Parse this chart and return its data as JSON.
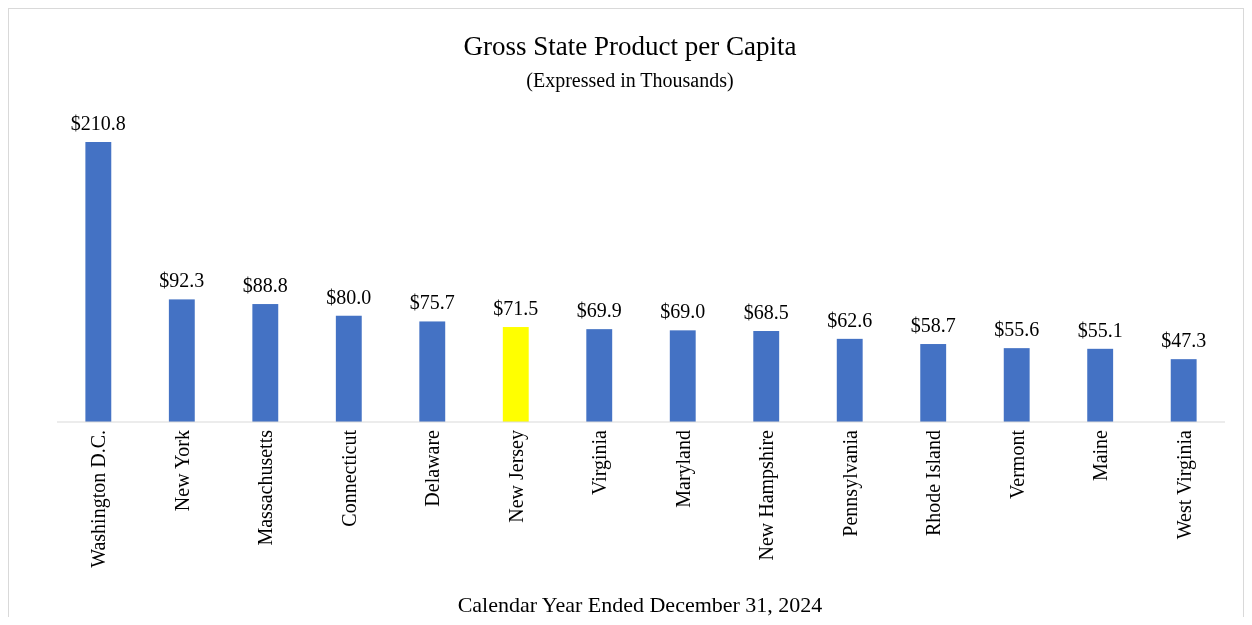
{
  "chart_data": {
    "type": "bar",
    "title": "Gross State Product per Capita",
    "subtitle": "(Expressed in Thousands)",
    "xlabel": "Calendar Year Ended December 31, 2024",
    "categories": [
      "Washington D.C.",
      "New York",
      "Massachusetts",
      "Connecticut",
      "Delaware",
      "New Jersey",
      "Virginia",
      "Maryland",
      "New Hampshire",
      "Pennsylvania",
      "Rhode Island",
      "Vermont",
      "Maine",
      "West Virginia"
    ],
    "values": [
      210.8,
      92.3,
      88.8,
      80.0,
      75.7,
      71.5,
      69.9,
      69.0,
      68.5,
      62.6,
      58.7,
      55.6,
      55.1,
      47.3
    ],
    "value_labels": [
      "$210.8",
      "$92.3",
      "$88.8",
      "$80.0",
      "$75.7",
      "$71.5",
      "$69.9",
      "$69.0",
      "$68.5",
      "$62.6",
      "$58.7",
      "$55.6",
      "$55.1",
      "$47.3"
    ],
    "colors": [
      "#4472c4",
      "#4472c4",
      "#4472c4",
      "#4472c4",
      "#4472c4",
      "#ffff00",
      "#4472c4",
      "#4472c4",
      "#4472c4",
      "#4472c4",
      "#4472c4",
      "#4472c4",
      "#4472c4",
      "#4472c4"
    ]
  }
}
